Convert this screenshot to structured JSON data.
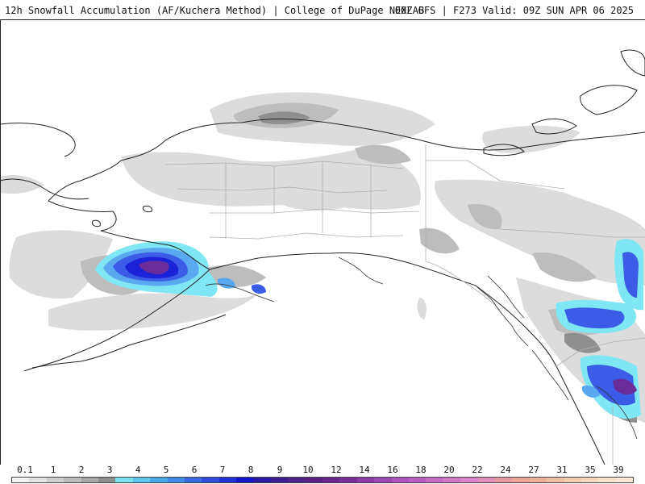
{
  "header": {
    "title_left": "12h Snowfall Accumulation (AF/Kuchera Method) | College of DuPage NEXLAB",
    "title_right": "00Z GFS | F273 Valid: 09Z SUN APR 06 2025"
  },
  "legend": {
    "labels": [
      "0.1",
      "1",
      "2",
      "3",
      "4",
      "5",
      "6",
      "7",
      "8",
      "9",
      "10",
      "12",
      "14",
      "16",
      "18",
      "20",
      "22",
      "24",
      "27",
      "31",
      "35",
      "39"
    ],
    "colors": [
      "#f4f4f4",
      "#e2e2e2",
      "#d0d0d0",
      "#bcbcbc",
      "#a6a6a6",
      "#8e8e8e",
      "#7ae3f0",
      "#5fc8ec",
      "#4aa9ea",
      "#3f8be6",
      "#3a6ae2",
      "#2f4cdc",
      "#1e2fd6",
      "#1414c8",
      "#2a1aa6",
      "#3a1f93",
      "#4b2389",
      "#5a1f86",
      "#6b2591",
      "#7a2e9c",
      "#8c39ab",
      "#9c47b8",
      "#ac52bf",
      "#bb5ec4",
      "#c86ac6",
      "#d476c8",
      "#dd82c9",
      "#e38db9",
      "#e799a2",
      "#eba596",
      "#eeb29c",
      "#f1bfa6",
      "#f3cbb1",
      "#f6d7bd",
      "#f8e2c9",
      "#fae9d6"
    ]
  },
  "map": {
    "region": "Alaska / Western Canada",
    "shading_colors": {
      "light": "#dedede",
      "mid": "#c4c4c4",
      "dark": "#9a9a9a",
      "cyan": "#7fe6f4",
      "lightblue": "#5fb0f0",
      "blue": "#3a5ce6",
      "deepblue": "#1c22d8",
      "purple": "#6a2c9a",
      "magenta": "#8a3aa8"
    }
  }
}
